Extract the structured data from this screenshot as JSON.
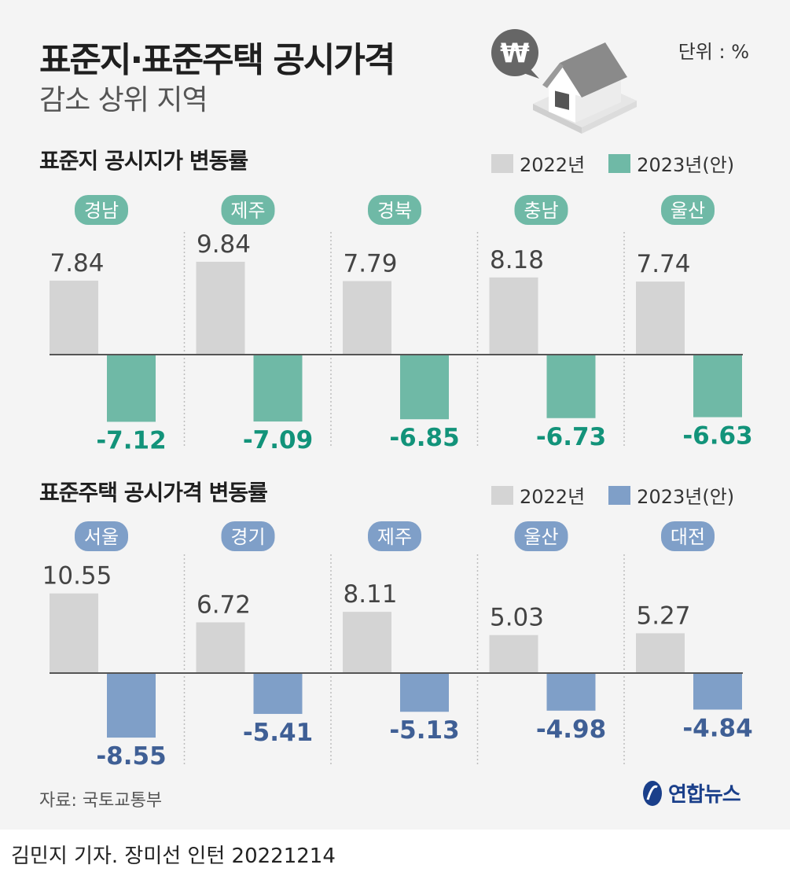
{
  "title": "표준지·표준주택 공시가격",
  "subtitle": "감소 상위 지역",
  "unit": "단위 : %",
  "icons": {
    "badge": "won-sign-speech-bubble-icon",
    "house": "house-icon"
  },
  "colors": {
    "prev": "#d4d4d4",
    "land": "#6fb9a6",
    "land_text": "#12937a",
    "house": "#7f9fc8",
    "house_text": "#3f5f95"
  },
  "chart_data": [
    {
      "type": "bar",
      "title": "표준지 공시지가 변동률",
      "categories": [
        "경남",
        "제주",
        "경북",
        "충남",
        "울산"
      ],
      "series": [
        {
          "name": "2022년",
          "values": [
            7.84,
            9.84,
            7.79,
            8.18,
            7.74
          ]
        },
        {
          "name": "2023년(안)",
          "values": [
            -7.12,
            -7.09,
            -6.85,
            -6.73,
            -6.63
          ]
        }
      ],
      "labels_prev": [
        "7.84",
        "9.84",
        "7.79",
        "8.18",
        "7.74"
      ],
      "labels_new": [
        "-7.12",
        "-7.09",
        "-6.85",
        "-6.73",
        "-6.63"
      ]
    },
    {
      "type": "bar",
      "title": "표준주택 공시가격 변동률",
      "categories": [
        "서울",
        "경기",
        "제주",
        "울산",
        "대전"
      ],
      "series": [
        {
          "name": "2022년",
          "values": [
            10.55,
            6.72,
            8.11,
            5.03,
            5.27
          ]
        },
        {
          "name": "2023년(안)",
          "values": [
            -8.55,
            -5.41,
            -5.13,
            -4.98,
            -4.84
          ]
        }
      ],
      "labels_prev": [
        "10.55",
        "6.72",
        "8.11",
        "5.03",
        "5.27"
      ],
      "labels_new": [
        "-8.55",
        "-5.41",
        "-5.13",
        "-4.98",
        "-4.84"
      ]
    }
  ],
  "source": "자료: 국토교통부",
  "logo": "연합뉴스",
  "credit": "김민지 기자. 장미선 인턴  20221214"
}
